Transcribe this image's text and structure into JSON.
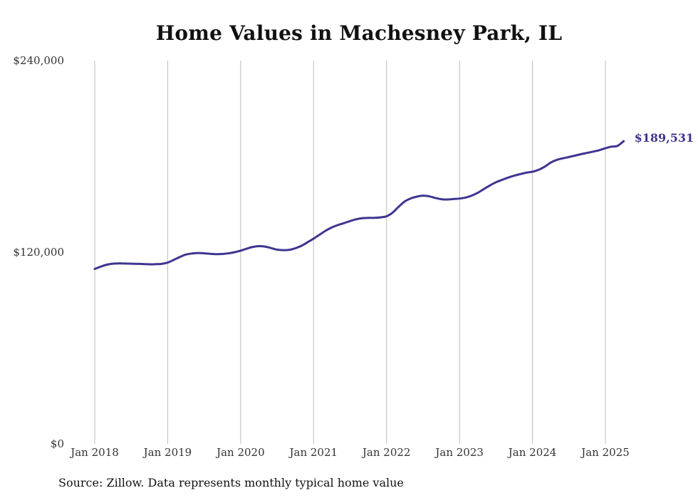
{
  "chart_data": {
    "type": "line",
    "title": "Home Values in Machesney Park, IL",
    "source_note": "Source: Zillow. Data represents monthly typical home value",
    "x_tick_labels": [
      "Jan 2018",
      "Jan 2019",
      "Jan 2020",
      "Jan 2021",
      "Jan 2022",
      "Jan 2023",
      "Jan 2024",
      "Jan 2025"
    ],
    "y_tick_labels": [
      "$0",
      "$120,000",
      "$240,000"
    ],
    "ylim": [
      0,
      240000
    ],
    "grid": "vertical lines at January of each year",
    "end_label": "$189,531",
    "colors": {
      "line": "#3f3590",
      "grid": "#bdbdbd"
    },
    "series": [
      {
        "x": [
          "2018-01",
          "2018-02",
          "2018-03",
          "2018-04",
          "2018-05",
          "2018-06",
          "2018-07",
          "2018-08",
          "2018-09",
          "2018-10",
          "2018-11",
          "2018-12",
          "2019-01",
          "2019-02",
          "2019-03",
          "2019-04",
          "2019-05",
          "2019-06",
          "2019-07",
          "2019-08",
          "2019-09",
          "2019-10",
          "2019-11",
          "2019-12",
          "2020-01",
          "2020-02",
          "2020-03",
          "2020-04",
          "2020-05",
          "2020-06",
          "2020-07",
          "2020-08",
          "2020-09",
          "2020-10",
          "2020-11",
          "2020-12",
          "2021-01",
          "2021-02",
          "2021-03",
          "2021-04",
          "2021-05",
          "2021-06",
          "2021-07",
          "2021-08",
          "2021-09",
          "2021-10",
          "2021-11",
          "2021-12",
          "2022-01",
          "2022-02",
          "2022-03",
          "2022-04",
          "2022-05",
          "2022-06",
          "2022-07",
          "2022-08",
          "2022-09",
          "2022-10",
          "2022-11",
          "2022-12",
          "2023-01",
          "2023-02",
          "2023-03",
          "2023-04",
          "2023-05",
          "2023-06",
          "2023-07",
          "2023-08",
          "2023-09",
          "2023-10",
          "2023-11",
          "2023-12",
          "2024-01",
          "2024-02",
          "2024-03",
          "2024-04",
          "2024-05",
          "2024-06",
          "2024-07",
          "2024-08",
          "2024-09",
          "2024-10",
          "2024-11",
          "2024-12",
          "2025-01",
          "2025-02",
          "2025-03",
          "2025-04"
        ],
        "values": [
          109500,
          111000,
          112200,
          112800,
          113000,
          112900,
          112800,
          112700,
          112600,
          112400,
          112500,
          112700,
          113500,
          115200,
          117000,
          118500,
          119200,
          119500,
          119300,
          119000,
          118800,
          118900,
          119300,
          120000,
          121000,
          122200,
          123300,
          123800,
          123500,
          122600,
          121600,
          121300,
          121500,
          122500,
          124000,
          126200,
          128500,
          131000,
          133500,
          135500,
          137000,
          138200,
          139500,
          140600,
          141300,
          141500,
          141500,
          141800,
          142500,
          144800,
          148500,
          151800,
          153700,
          154800,
          155400,
          155000,
          154000,
          153200,
          153000,
          153300,
          153600,
          154200,
          155400,
          157200,
          159500,
          161800,
          163800,
          165300,
          166700,
          167900,
          168900,
          169800,
          170400,
          171600,
          173500,
          176100,
          177800,
          178800,
          179600,
          180500,
          181400,
          182200,
          183000,
          183900,
          185100,
          186100,
          186600,
          189531
        ]
      }
    ]
  }
}
